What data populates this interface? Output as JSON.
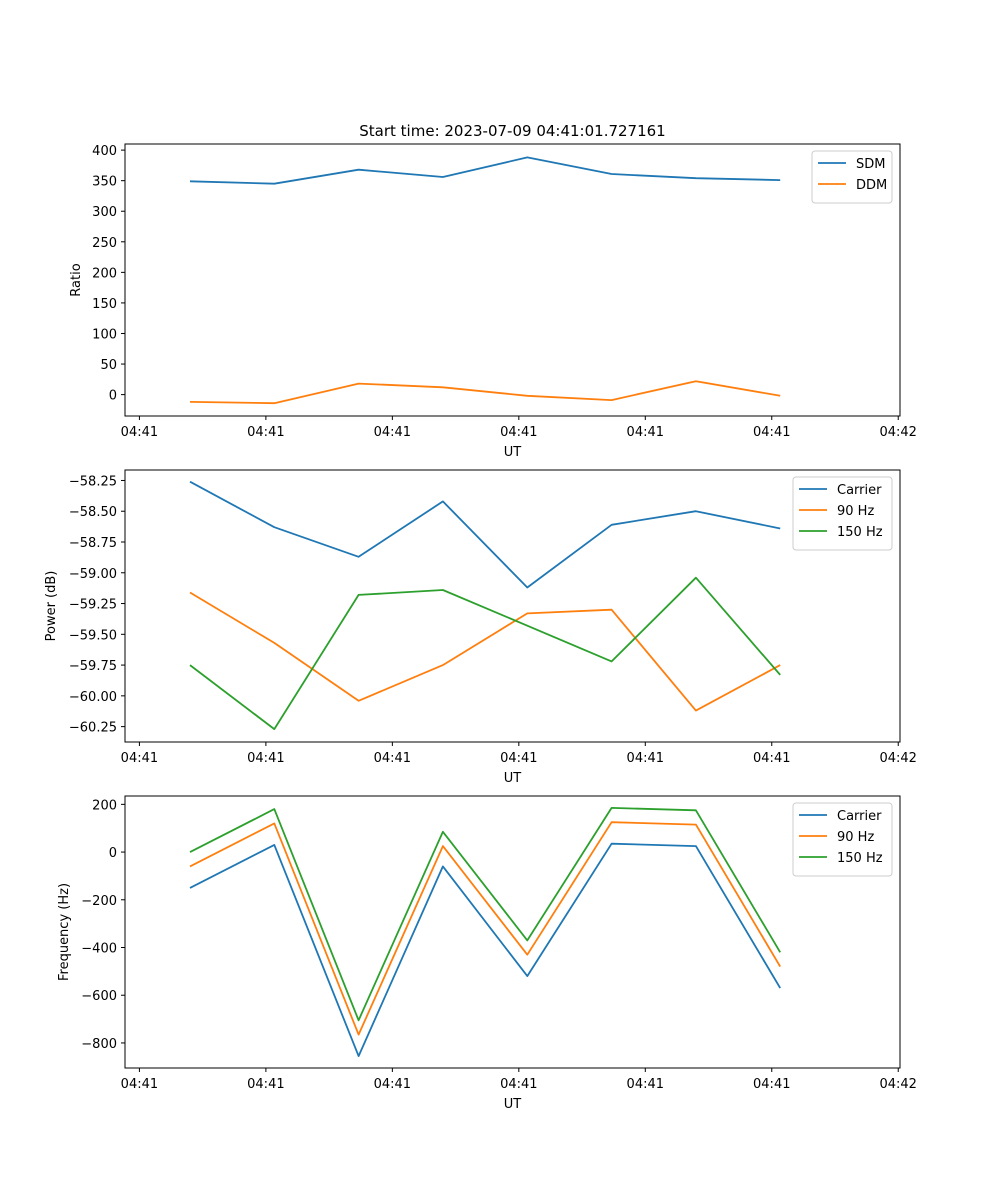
{
  "figure_title": "Start time: 2023-07-09 04:41:01.727161",
  "colors": {
    "blue": "#1f77b4",
    "orange": "#ff7f0e",
    "green": "#2ca02c"
  },
  "chart_data": [
    {
      "type": "line",
      "title": "Start time: 2023-07-09 04:41:01.727161",
      "xlabel": "UT",
      "ylabel": "Ratio",
      "x": [
        1,
        2,
        3,
        4,
        5,
        6,
        7,
        8
      ],
      "xlim": [
        0.229,
        9.421
      ],
      "xticks": [
        0.4,
        1.9,
        3.4,
        4.9,
        6.4,
        7.9,
        9.4
      ],
      "xtick_labels": [
        "04:41",
        "04:41",
        "04:41",
        "04:41",
        "04:41",
        "04:41",
        "04:42"
      ],
      "ylim": [
        -35,
        410
      ],
      "yticks": [
        0,
        50,
        100,
        150,
        200,
        250,
        300,
        350,
        400
      ],
      "ytick_labels": [
        "0",
        "50",
        "100",
        "150",
        "200",
        "250",
        "300",
        "350",
        "400"
      ],
      "legend_position": "top-right",
      "series": [
        {
          "name": "SDM",
          "color": "#1f77b4",
          "values": [
            349,
            345,
            368,
            356,
            388,
            361,
            354,
            351
          ]
        },
        {
          "name": "DDM",
          "color": "#ff7f0e",
          "values": [
            -12,
            -14,
            18,
            12,
            -2,
            -9,
            22,
            -2
          ]
        }
      ]
    },
    {
      "type": "line",
      "title": "",
      "xlabel": "UT",
      "ylabel": "Power (dB)",
      "x": [
        1,
        2,
        3,
        4,
        5,
        6,
        7,
        8
      ],
      "xlim": [
        0.229,
        9.421
      ],
      "xticks": [
        0.4,
        1.9,
        3.4,
        4.9,
        6.4,
        7.9,
        9.4
      ],
      "xtick_labels": [
        "04:41",
        "04:41",
        "04:41",
        "04:41",
        "04:41",
        "04:41",
        "04:42"
      ],
      "ylim": [
        -60.375,
        -58.165
      ],
      "yticks": [
        -60.25,
        -60.0,
        -59.75,
        -59.5,
        -59.25,
        -59.0,
        -58.75,
        -58.5,
        -58.25
      ],
      "ytick_labels": [
        "−60.25",
        "−60.00",
        "−59.75",
        "−59.50",
        "−59.25",
        "−59.00",
        "−58.75",
        "−58.50",
        "−58.25"
      ],
      "legend_position": "top-right",
      "series": [
        {
          "name": "Carrier",
          "color": "#1f77b4",
          "values": [
            -58.26,
            -58.63,
            -58.87,
            -58.42,
            -59.12,
            -58.61,
            -58.5,
            -58.64
          ]
        },
        {
          "name": "90 Hz",
          "color": "#ff7f0e",
          "values": [
            -59.16,
            -59.57,
            -60.04,
            -59.75,
            -59.33,
            -59.3,
            -60.12,
            -59.75
          ]
        },
        {
          "name": "150 Hz",
          "color": "#2ca02c",
          "values": [
            -59.75,
            -60.27,
            -59.18,
            -59.14,
            -59.43,
            -59.72,
            -59.04,
            -59.83
          ]
        }
      ]
    },
    {
      "type": "line",
      "title": "",
      "xlabel": "UT",
      "ylabel": "Frequency (Hz)",
      "x": [
        1,
        2,
        3,
        4,
        5,
        6,
        7,
        8
      ],
      "xlim": [
        0.229,
        9.421
      ],
      "xticks": [
        0.4,
        1.9,
        3.4,
        4.9,
        6.4,
        7.9,
        9.4
      ],
      "xtick_labels": [
        "04:41",
        "04:41",
        "04:41",
        "04:41",
        "04:41",
        "04:41",
        "04:42"
      ],
      "ylim": [
        -905,
        235
      ],
      "yticks": [
        -800,
        -600,
        -400,
        -200,
        0,
        200
      ],
      "ytick_labels": [
        "−800",
        "−600",
        "−400",
        "−200",
        "0",
        "200"
      ],
      "legend_position": "top-right",
      "series": [
        {
          "name": "Carrier",
          "color": "#1f77b4",
          "values": [
            -150,
            30,
            -855,
            -60,
            -520,
            35,
            25,
            -570
          ]
        },
        {
          "name": "90 Hz",
          "color": "#ff7f0e",
          "values": [
            -60,
            120,
            -765,
            25,
            -430,
            125,
            115,
            -480
          ]
        },
        {
          "name": "150 Hz",
          "color": "#2ca02c",
          "values": [
            0,
            180,
            -705,
            85,
            -370,
            185,
            175,
            -420
          ]
        }
      ]
    }
  ]
}
